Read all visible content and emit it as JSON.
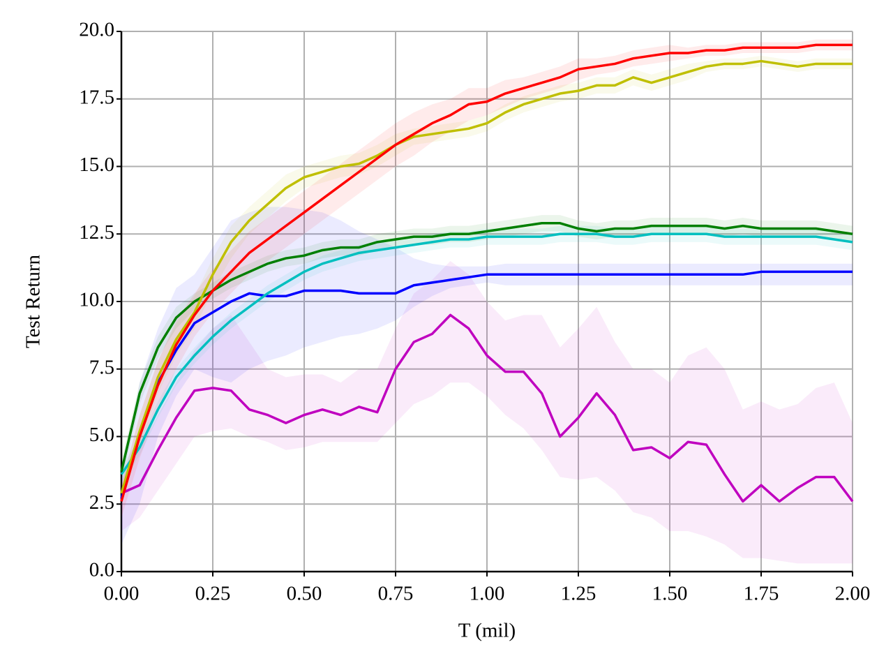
{
  "chart_data": {
    "type": "line",
    "xlabel": "T (mil)",
    "ylabel": "Test Return",
    "grid": true,
    "x": [
      0,
      0.05,
      0.1,
      0.15,
      0.2,
      0.25,
      0.3,
      0.35,
      0.4,
      0.45,
      0.5,
      0.55,
      0.6,
      0.65,
      0.7,
      0.75,
      0.8,
      0.85,
      0.9,
      0.95,
      1.0,
      1.05,
      1.1,
      1.15,
      1.2,
      1.25,
      1.3,
      1.35,
      1.4,
      1.45,
      1.5,
      1.55,
      1.6,
      1.65,
      1.7,
      1.75,
      1.8,
      1.85,
      1.9,
      1.95,
      2.0
    ],
    "xlim": [
      0,
      2
    ],
    "ylim": [
      0,
      20
    ],
    "xticks": [
      {
        "value": 0,
        "label": "0.00"
      },
      {
        "value": 0.25,
        "label": "0.25"
      },
      {
        "value": 0.5,
        "label": "0.50"
      },
      {
        "value": 0.75,
        "label": "0.75"
      },
      {
        "value": 1,
        "label": "1.00"
      },
      {
        "value": 1.25,
        "label": "1.25"
      },
      {
        "value": 1.5,
        "label": "1.50"
      },
      {
        "value": 1.75,
        "label": "1.75"
      },
      {
        "value": 2,
        "label": "2.00"
      }
    ],
    "yticks": [
      {
        "value": 0,
        "label": "0.0"
      },
      {
        "value": 2.5,
        "label": "2.5"
      },
      {
        "value": 5,
        "label": "5.0"
      },
      {
        "value": 7.5,
        "label": "7.5"
      },
      {
        "value": 10,
        "label": "10.0"
      },
      {
        "value": 12.5,
        "label": "12.5"
      },
      {
        "value": 15,
        "label": "15.0"
      },
      {
        "value": 17.5,
        "label": "17.5"
      },
      {
        "value": 20,
        "label": "20.0"
      }
    ],
    "series": [
      {
        "color": "#bf00bf",
        "values": [
          2.9,
          3.2,
          4.5,
          5.7,
          6.7,
          6.8,
          6.7,
          6.0,
          5.8,
          5.5,
          5.8,
          6.0,
          5.8,
          6.1,
          5.9,
          7.5,
          8.5,
          8.8,
          9.5,
          9.0,
          8.0,
          7.4,
          7.4,
          6.6,
          5.0,
          5.7,
          6.6,
          5.8,
          4.5,
          4.6,
          4.2,
          4.8,
          4.7,
          3.6,
          2.6,
          3.2,
          2.6,
          3.1,
          3.5,
          3.5,
          2.6
        ],
        "lower": [
          1.5,
          2.0,
          3.0,
          4.0,
          5.0,
          5.2,
          5.3,
          5.0,
          4.8,
          4.5,
          4.6,
          4.8,
          4.8,
          4.8,
          4.8,
          5.5,
          6.2,
          6.5,
          7.0,
          7.0,
          6.5,
          5.8,
          5.3,
          4.5,
          3.5,
          3.4,
          3.5,
          3.0,
          2.2,
          2.0,
          1.5,
          1.5,
          1.3,
          1.0,
          0.5,
          0.5,
          0.4,
          0.3,
          0.3,
          0.3,
          0.3
        ],
        "upper": [
          3.5,
          4.5,
          5.8,
          7.0,
          8.2,
          9.0,
          9.5,
          8.5,
          7.5,
          7.2,
          7.3,
          7.3,
          7.0,
          7.5,
          7.5,
          9.0,
          10.3,
          10.8,
          11.5,
          11.0,
          10.0,
          9.3,
          9.5,
          9.5,
          8.3,
          9.0,
          9.8,
          8.5,
          7.5,
          7.5,
          7.0,
          8.0,
          8.3,
          7.5,
          6.0,
          6.3,
          6.0,
          6.2,
          6.8,
          7.0,
          5.5
        ]
      },
      {
        "color": "#0000ff",
        "values": [
          2.7,
          5.0,
          7.0,
          8.2,
          9.2,
          9.6,
          10.0,
          10.3,
          10.2,
          10.2,
          10.4,
          10.4,
          10.4,
          10.3,
          10.3,
          10.3,
          10.6,
          10.7,
          10.8,
          10.9,
          11.0,
          11.0,
          11.0,
          11.0,
          11.0,
          11.0,
          11.0,
          11.0,
          11.0,
          11.0,
          11.0,
          11.0,
          11.0,
          11.0,
          11.0,
          11.1,
          11.1,
          11.1,
          11.1,
          11.1,
          11.1
        ],
        "lower": [
          1.0,
          2.5,
          5.0,
          6.5,
          7.5,
          7.2,
          7.0,
          7.5,
          7.8,
          8.0,
          8.3,
          8.5,
          8.7,
          8.8,
          9.0,
          9.3,
          9.8,
          10.2,
          10.5,
          10.6,
          10.7,
          10.6,
          10.6,
          10.6,
          10.6,
          10.6,
          10.6,
          10.6,
          10.6,
          10.6,
          10.6,
          10.6,
          10.6,
          10.6,
          10.6,
          10.6,
          10.6,
          10.6,
          10.6,
          10.6,
          10.6
        ],
        "upper": [
          3.5,
          7.0,
          9.0,
          10.5,
          11.0,
          12.0,
          13.0,
          13.3,
          13.5,
          13.5,
          13.4,
          13.3,
          13.0,
          12.6,
          12.3,
          12.0,
          11.6,
          11.4,
          11.3,
          11.3,
          11.3,
          11.4,
          11.4,
          11.4,
          11.4,
          11.4,
          11.4,
          11.4,
          11.4,
          11.4,
          11.4,
          11.4,
          11.4,
          11.4,
          11.4,
          11.4,
          11.4,
          11.4,
          11.4,
          11.4,
          11.4
        ]
      },
      {
        "color": "#00bfbf",
        "values": [
          3.6,
          4.6,
          6.0,
          7.2,
          8.0,
          8.7,
          9.3,
          9.8,
          10.3,
          10.7,
          11.1,
          11.4,
          11.6,
          11.8,
          11.9,
          12.0,
          12.1,
          12.2,
          12.3,
          12.3,
          12.4,
          12.4,
          12.4,
          12.4,
          12.5,
          12.5,
          12.5,
          12.4,
          12.4,
          12.5,
          12.5,
          12.5,
          12.5,
          12.4,
          12.4,
          12.4,
          12.4,
          12.4,
          12.4,
          12.3,
          12.2
        ],
        "lower": [
          3.3,
          4.3,
          5.7,
          6.9,
          7.7,
          8.4,
          9.0,
          9.5,
          10.0,
          10.4,
          10.8,
          11.1,
          11.3,
          11.5,
          11.6,
          11.7,
          11.8,
          11.9,
          12.0,
          12.0,
          12.1,
          12.1,
          12.1,
          12.1,
          12.2,
          12.2,
          12.2,
          12.1,
          12.1,
          12.2,
          12.2,
          12.2,
          12.2,
          12.1,
          12.1,
          12.1,
          12.1,
          12.1,
          12.1,
          12.0,
          11.9
        ],
        "upper": [
          3.9,
          4.9,
          6.3,
          7.5,
          8.3,
          9.0,
          9.6,
          10.1,
          10.6,
          11.0,
          11.4,
          11.7,
          11.9,
          12.1,
          12.2,
          12.3,
          12.4,
          12.5,
          12.6,
          12.6,
          12.7,
          12.7,
          12.7,
          12.7,
          12.8,
          12.8,
          12.8,
          12.7,
          12.7,
          12.8,
          12.8,
          12.8,
          12.8,
          12.7,
          12.7,
          12.7,
          12.7,
          12.7,
          12.7,
          12.6,
          12.5
        ]
      },
      {
        "color": "#007f00",
        "values": [
          3.7,
          6.6,
          8.3,
          9.4,
          10.0,
          10.4,
          10.8,
          11.1,
          11.4,
          11.6,
          11.7,
          11.9,
          12.0,
          12.0,
          12.2,
          12.3,
          12.4,
          12.4,
          12.5,
          12.5,
          12.6,
          12.7,
          12.8,
          12.9,
          12.9,
          12.7,
          12.6,
          12.7,
          12.7,
          12.8,
          12.8,
          12.8,
          12.8,
          12.7,
          12.8,
          12.7,
          12.7,
          12.7,
          12.7,
          12.6,
          12.5
        ],
        "lower": [
          3.3,
          6.2,
          7.9,
          9.0,
          9.7,
          10.1,
          10.5,
          10.8,
          11.1,
          11.3,
          11.4,
          11.6,
          11.7,
          11.7,
          11.9,
          12.0,
          12.1,
          12.1,
          12.2,
          12.2,
          12.3,
          12.4,
          12.5,
          12.6,
          12.6,
          12.4,
          12.3,
          12.4,
          12.4,
          12.5,
          12.5,
          12.5,
          12.5,
          12.4,
          12.5,
          12.4,
          12.4,
          12.4,
          12.4,
          12.3,
          12.2
        ],
        "upper": [
          4.1,
          7.0,
          8.7,
          9.8,
          10.3,
          10.7,
          11.1,
          11.4,
          11.7,
          11.9,
          12.0,
          12.2,
          12.3,
          12.3,
          12.5,
          12.6,
          12.7,
          12.7,
          12.8,
          12.8,
          12.9,
          13.0,
          13.1,
          13.2,
          13.2,
          13.0,
          12.9,
          13.0,
          13.0,
          13.1,
          13.1,
          13.1,
          13.1,
          13.0,
          13.1,
          13.0,
          13.0,
          13.0,
          13.0,
          12.9,
          12.8
        ]
      },
      {
        "color": "#bfbf00",
        "values": [
          2.9,
          5.2,
          7.2,
          8.6,
          9.6,
          11.0,
          12.2,
          13.0,
          13.6,
          14.2,
          14.6,
          14.8,
          15.0,
          15.1,
          15.4,
          15.8,
          16.1,
          16.2,
          16.3,
          16.4,
          16.6,
          17.0,
          17.3,
          17.5,
          17.7,
          17.8,
          18.0,
          18.0,
          18.3,
          18.1,
          18.3,
          18.5,
          18.7,
          18.8,
          18.8,
          18.9,
          18.8,
          18.7,
          18.8,
          18.8,
          18.8
        ],
        "lower": [
          2.5,
          4.6,
          6.6,
          8.0,
          9.0,
          10.4,
          11.6,
          12.5,
          13.1,
          13.7,
          14.2,
          14.4,
          14.6,
          14.7,
          15.0,
          15.4,
          15.8,
          15.9,
          16.0,
          16.1,
          16.3,
          16.7,
          17.0,
          17.2,
          17.4,
          17.5,
          17.7,
          17.7,
          18.0,
          17.8,
          18.0,
          18.2,
          18.5,
          18.6,
          18.6,
          18.7,
          18.6,
          18.5,
          18.6,
          18.6,
          18.6
        ],
        "upper": [
          3.3,
          5.8,
          7.8,
          9.2,
          10.2,
          11.6,
          12.8,
          13.5,
          14.1,
          14.7,
          15.0,
          15.2,
          15.4,
          15.5,
          15.8,
          16.2,
          16.4,
          16.5,
          16.6,
          16.7,
          16.9,
          17.3,
          17.6,
          17.8,
          18.0,
          18.1,
          18.3,
          18.3,
          18.6,
          18.4,
          18.6,
          18.8,
          18.9,
          19.0,
          19.0,
          19.1,
          19.0,
          18.9,
          19.0,
          19.0,
          19.0
        ]
      },
      {
        "color": "#ff0000",
        "values": [
          2.6,
          5.0,
          6.9,
          8.4,
          9.5,
          10.4,
          11.1,
          11.8,
          12.3,
          12.8,
          13.3,
          13.8,
          14.3,
          14.8,
          15.3,
          15.8,
          16.2,
          16.6,
          16.9,
          17.3,
          17.4,
          17.7,
          17.9,
          18.1,
          18.3,
          18.6,
          18.7,
          18.8,
          19.0,
          19.1,
          19.2,
          19.2,
          19.3,
          19.3,
          19.4,
          19.4,
          19.4,
          19.4,
          19.5,
          19.5,
          19.5
        ],
        "lower": [
          2.0,
          4.2,
          6.0,
          7.5,
          8.7,
          9.6,
          10.3,
          11.0,
          11.5,
          12.0,
          12.5,
          13.0,
          13.5,
          14.0,
          14.5,
          15.0,
          15.4,
          15.9,
          16.3,
          16.7,
          16.9,
          17.2,
          17.5,
          17.7,
          17.9,
          18.2,
          18.4,
          18.5,
          18.7,
          18.8,
          18.9,
          19.0,
          19.1,
          19.1,
          19.2,
          19.2,
          19.2,
          19.2,
          19.3,
          19.3,
          19.3
        ],
        "upper": [
          3.2,
          5.8,
          7.8,
          9.3,
          10.3,
          11.2,
          11.9,
          12.6,
          13.1,
          13.6,
          14.1,
          14.6,
          15.1,
          15.6,
          16.1,
          16.6,
          17.0,
          17.3,
          17.5,
          17.9,
          17.9,
          18.2,
          18.3,
          18.5,
          18.7,
          19.0,
          19.0,
          19.1,
          19.3,
          19.4,
          19.5,
          19.4,
          19.5,
          19.5,
          19.6,
          19.6,
          19.6,
          19.6,
          19.7,
          19.7,
          19.7
        ]
      }
    ]
  }
}
